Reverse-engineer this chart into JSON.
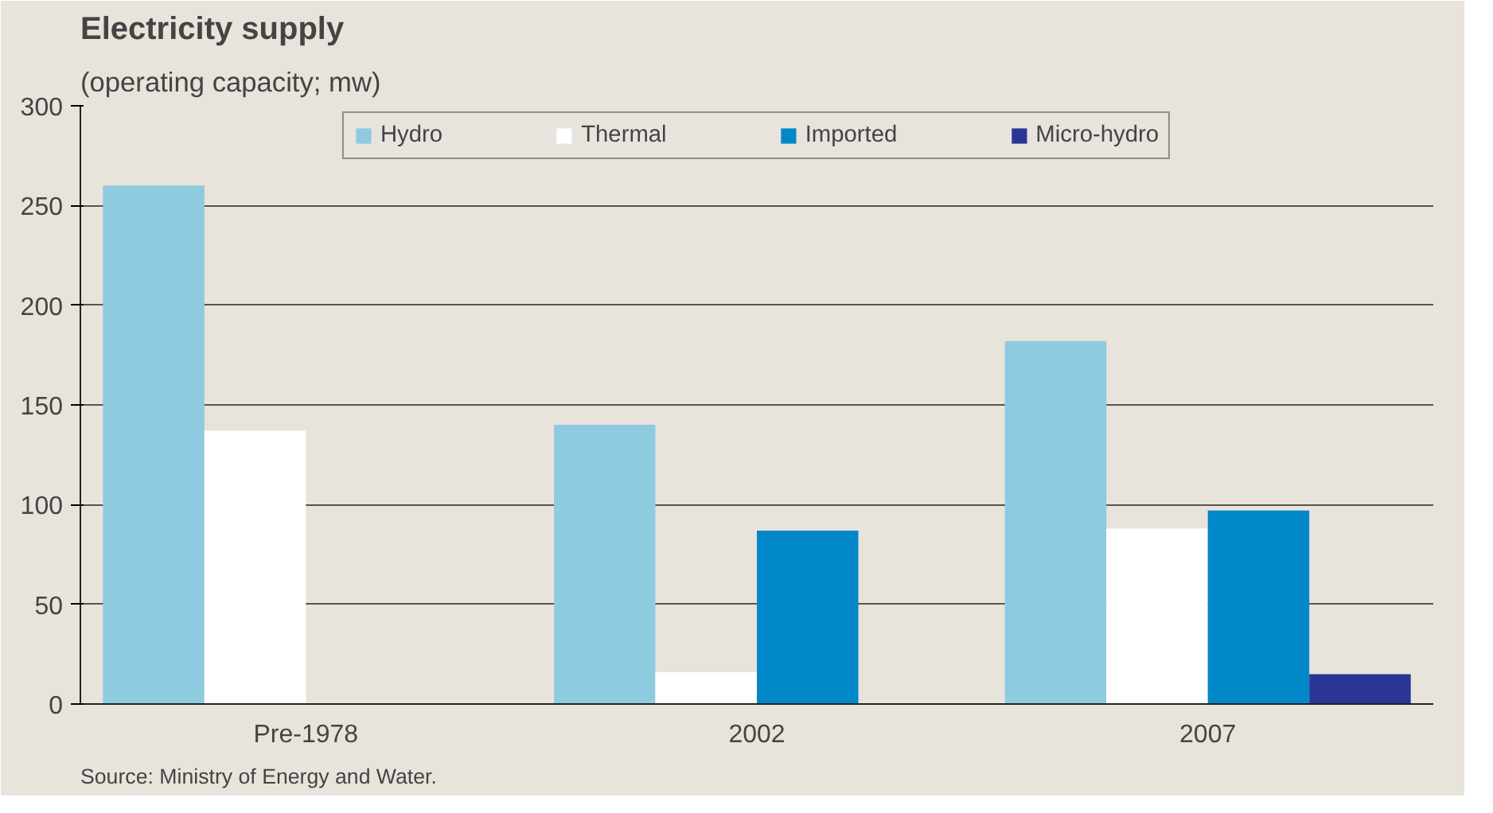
{
  "chart_data": {
    "type": "bar",
    "title": "Electricity supply",
    "subtitle": "(operating capacity; mw)",
    "categories": [
      "Pre-1978",
      "2002",
      "2007"
    ],
    "series": [
      {
        "name": "Hydro",
        "color": "#8ecae0",
        "values": [
          260,
          140,
          182
        ]
      },
      {
        "name": "Thermal",
        "color": "#ffffff",
        "values": [
          137,
          16,
          88
        ]
      },
      {
        "name": "Imported",
        "color": "#0088c8",
        "values": [
          null,
          87,
          97
        ]
      },
      {
        "name": "Micro-hydro",
        "color": "#2a3596",
        "values": [
          null,
          null,
          15
        ]
      }
    ],
    "ylim": [
      0,
      300
    ],
    "yticks": [
      0,
      50,
      100,
      150,
      200,
      250,
      300
    ],
    "grid": "y",
    "legend": "top",
    "annotations": [
      "Source: Ministry of Energy and Water."
    ]
  }
}
